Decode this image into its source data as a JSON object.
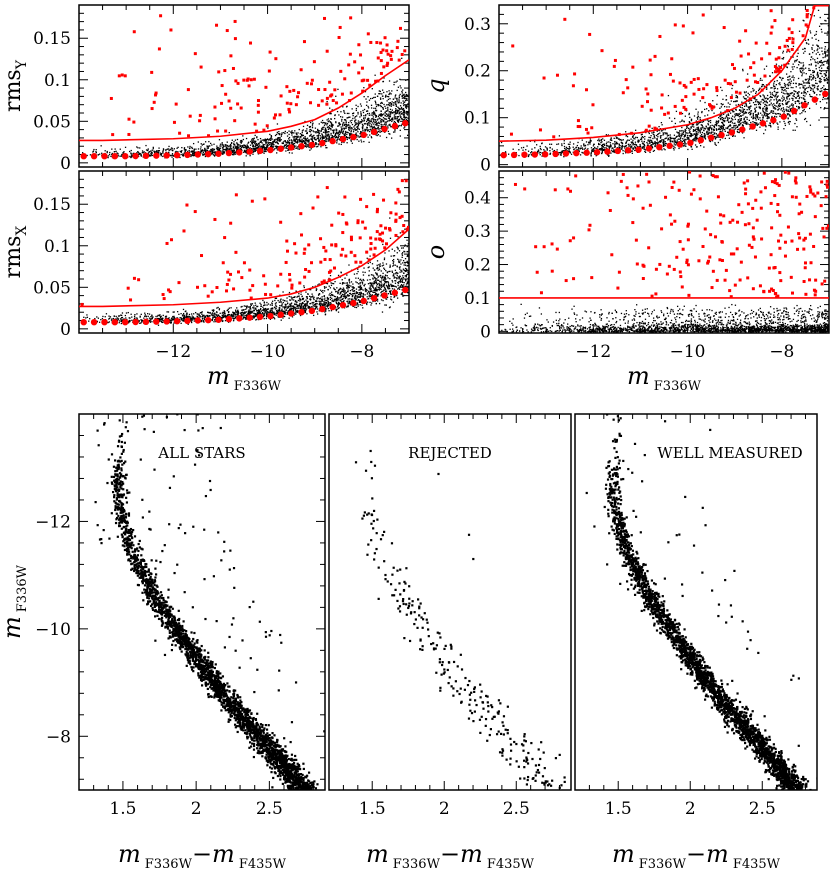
{
  "chart_data": [
    {
      "id": "rmsy",
      "type": "scatter",
      "title": "",
      "xlabel": "m_F336W",
      "ylabel": "rms_Y",
      "ylabel_main": "rms",
      "ylabel_sub": "Y",
      "xlim": [
        -14,
        -7
      ],
      "ylim": [
        -0.005,
        0.19
      ],
      "xticks": [
        -12,
        -10,
        -8
      ],
      "yticks": [
        0,
        0.05,
        0.1,
        0.15
      ],
      "ytick_labels": [
        "0",
        "0.05",
        "0.1",
        "0.15"
      ],
      "cut_line": {
        "x": [
          -14,
          -13.5,
          -12,
          -11,
          -10,
          -9.5,
          -9,
          -8.5,
          -8,
          -7.5,
          -7
        ],
        "y": [
          0.027,
          0.027,
          0.029,
          0.032,
          0.038,
          0.044,
          0.052,
          0.066,
          0.084,
          0.105,
          0.124
        ]
      },
      "median": {
        "x": [
          -14,
          -13,
          -12,
          -11,
          -10,
          -9,
          -8,
          -7
        ],
        "y": [
          0.008,
          0.008,
          0.009,
          0.011,
          0.015,
          0.022,
          0.033,
          0.049
        ]
      }
    },
    {
      "id": "q",
      "type": "scatter",
      "title": "",
      "xlabel": "m_F336W",
      "ylabel": "q",
      "xlim": [
        -14,
        -7
      ],
      "ylim": [
        -0.005,
        0.34
      ],
      "xticks": [
        -12,
        -10,
        -8
      ],
      "yticks": [
        0,
        0.1,
        0.2,
        0.3
      ],
      "ytick_labels": [
        "0",
        "0.1",
        "0.2",
        "0.3"
      ],
      "cut_line": {
        "x": [
          -14,
          -13,
          -12,
          -11,
          -10,
          -9.5,
          -9,
          -8.5,
          -8,
          -7.5,
          -7.3
        ],
        "y": [
          0.05,
          0.052,
          0.058,
          0.068,
          0.085,
          0.1,
          0.12,
          0.15,
          0.2,
          0.27,
          0.34
        ]
      },
      "median": {
        "x": [
          -14,
          -13,
          -12,
          -11,
          -10,
          -9,
          -8,
          -7
        ],
        "y": [
          0.02,
          0.022,
          0.026,
          0.032,
          0.045,
          0.07,
          0.1,
          0.155
        ]
      }
    },
    {
      "id": "rmsx",
      "type": "scatter",
      "title": "",
      "xlabel": "m_F336W",
      "ylabel": "rms_X",
      "ylabel_main": "rms",
      "ylabel_sub": "X",
      "xlim": [
        -14,
        -7
      ],
      "ylim": [
        -0.005,
        0.19
      ],
      "xticks": [
        -12,
        -10,
        -8
      ],
      "yticks": [
        0,
        0.05,
        0.1,
        0.15
      ],
      "ytick_labels": [
        "0",
        "0.05",
        "0.1",
        "0.15"
      ],
      "xtick_labels": [
        "−12",
        "−10",
        "−8"
      ],
      "cut_line": {
        "x": [
          -14,
          -13.5,
          -12,
          -11,
          -10,
          -9.5,
          -9,
          -8.5,
          -8,
          -7.5,
          -7
        ],
        "y": [
          0.027,
          0.027,
          0.029,
          0.032,
          0.037,
          0.042,
          0.05,
          0.062,
          0.076,
          0.095,
          0.12
        ]
      },
      "median": {
        "x": [
          -14,
          -13,
          -12,
          -11,
          -10,
          -9,
          -8,
          -7
        ],
        "y": [
          0.008,
          0.008,
          0.009,
          0.011,
          0.015,
          0.022,
          0.033,
          0.048
        ]
      }
    },
    {
      "id": "o",
      "type": "scatter",
      "title": "",
      "xlabel": "m_F336W",
      "ylabel": "o",
      "xlim": [
        -14,
        -7
      ],
      "ylim": [
        -0.005,
        0.48
      ],
      "xticks": [
        -12,
        -10,
        -8
      ],
      "yticks": [
        0,
        0.1,
        0.2,
        0.3,
        0.4
      ],
      "ytick_labels": [
        "0",
        "0.1",
        "0.2",
        "0.3",
        "0.4"
      ],
      "xtick_labels": [
        "−12",
        "−10",
        "−8"
      ],
      "cut_line": {
        "x": [
          -14,
          -7
        ],
        "y": [
          0.1,
          0.1
        ]
      }
    },
    {
      "id": "cmd_all",
      "type": "scatter",
      "title": "ALL STARS",
      "xlabel": "m_F336W − m_F435W",
      "ylabel": "m_F336W",
      "xlim": [
        1.2,
        2.88
      ],
      "ylim": [
        -7,
        -14
      ],
      "xticks": [
        1.5,
        2,
        2.5
      ],
      "xtick_labels": [
        "1.5",
        "2",
        "2.5"
      ],
      "yticks": [
        -12,
        -10,
        -8
      ],
      "ytick_labels": [
        "−12",
        "−10",
        "−8"
      ]
    },
    {
      "id": "cmd_rej",
      "type": "scatter",
      "title": "REJECTED",
      "xlabel": "m_F336W − m_F435W",
      "xlim": [
        1.2,
        2.88
      ],
      "ylim": [
        -7,
        -14
      ],
      "xticks": [
        1.5,
        2,
        2.5
      ],
      "xtick_labels": [
        "1.5",
        "2",
        "2.5"
      ]
    },
    {
      "id": "cmd_good",
      "type": "scatter",
      "title": "WELL MEASURED",
      "xlabel": "m_F336W − m_F435W",
      "xlim": [
        1.2,
        2.88
      ],
      "ylim": [
        -7,
        -14
      ],
      "xticks": [
        1.5,
        2,
        2.5
      ],
      "xtick_labels": [
        "1.5",
        "2",
        "2.5"
      ]
    }
  ],
  "labels": {
    "m": "m",
    "f336w": "F336W",
    "f435w": "F435W",
    "minus": "−"
  },
  "colors": {
    "accent": "#ff0000",
    "points": "#000000"
  }
}
